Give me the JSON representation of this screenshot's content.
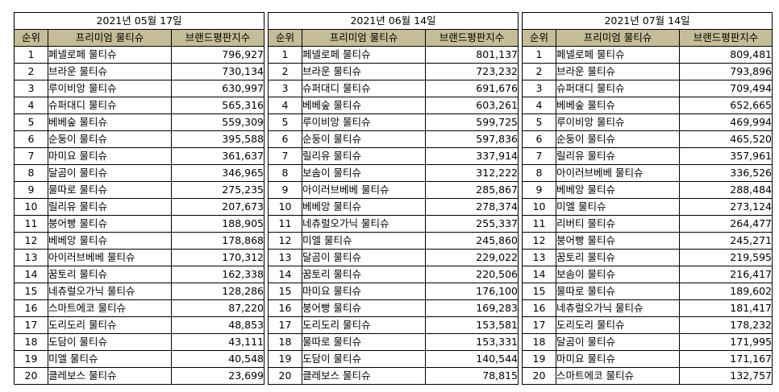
{
  "headers": {
    "rank": "순위",
    "name": "프리미엄 물티슈",
    "score": "브랜드평판지수"
  },
  "header_bg": "#c4bd97",
  "tables": [
    {
      "date": "2021년 05월 17일",
      "rows": [
        {
          "rank": "1",
          "name": "페넬로페 물티슈",
          "score": "796,927"
        },
        {
          "rank": "2",
          "name": "브라운 물티슈",
          "score": "730,134"
        },
        {
          "rank": "3",
          "name": "루이비앙 물티슈",
          "score": "630,997"
        },
        {
          "rank": "4",
          "name": "슈퍼대디 물티슈",
          "score": "565,316"
        },
        {
          "rank": "5",
          "name": "베베숲 물티슈",
          "score": "559,309"
        },
        {
          "rank": "6",
          "name": "순둥이 물티슈",
          "score": "395,588"
        },
        {
          "rank": "7",
          "name": "마미요 물티슈",
          "score": "361,637"
        },
        {
          "rank": "8",
          "name": "달곰이 물티슈",
          "score": "346,965"
        },
        {
          "rank": "9",
          "name": "물따로 물티슈",
          "score": "275,235"
        },
        {
          "rank": "10",
          "name": "릴리유 물티슈",
          "score": "207,673"
        },
        {
          "rank": "11",
          "name": "붕어빵 물티슈",
          "score": "188,905"
        },
        {
          "rank": "12",
          "name": "베베앙 물티슈",
          "score": "178,868"
        },
        {
          "rank": "13",
          "name": "아이러브베베 물티슈",
          "score": "170,312"
        },
        {
          "rank": "14",
          "name": "꿈토리 물티슈",
          "score": "162,338"
        },
        {
          "rank": "15",
          "name": "네츄럴오가닉 물티슈",
          "score": "128,286"
        },
        {
          "rank": "16",
          "name": "스마트에코 물티슈",
          "score": "87,220"
        },
        {
          "rank": "17",
          "name": "도리도리 물티슈",
          "score": "48,853"
        },
        {
          "rank": "18",
          "name": "도담이 물티슈",
          "score": "43,111"
        },
        {
          "rank": "19",
          "name": "미엘 물티슈",
          "score": "40,548"
        },
        {
          "rank": "20",
          "name": "클레보스 물티슈",
          "score": "23,699"
        }
      ]
    },
    {
      "date": "2021년 06월 14일",
      "rows": [
        {
          "rank": "1",
          "name": "페넬로페 물티슈",
          "score": "801,137"
        },
        {
          "rank": "2",
          "name": "브라운 물티슈",
          "score": "723,232"
        },
        {
          "rank": "3",
          "name": "슈퍼대디 물티슈",
          "score": "691,676"
        },
        {
          "rank": "4",
          "name": "베베숲 물티슈",
          "score": "603,261"
        },
        {
          "rank": "5",
          "name": "루이비앙 물티슈",
          "score": "599,725"
        },
        {
          "rank": "6",
          "name": "순둥이 물티슈",
          "score": "597,836"
        },
        {
          "rank": "7",
          "name": "릴리유 물티슈",
          "score": "337,914"
        },
        {
          "rank": "8",
          "name": "보솜이 물티슈",
          "score": "312,222"
        },
        {
          "rank": "9",
          "name": "아이러브베베 물티슈",
          "score": "285,867"
        },
        {
          "rank": "10",
          "name": "베베앙 물티슈",
          "score": "278,374"
        },
        {
          "rank": "11",
          "name": "네츄럴오가닉 물티슈",
          "score": "255,337"
        },
        {
          "rank": "12",
          "name": "미엘 물티슈",
          "score": "245,860"
        },
        {
          "rank": "13",
          "name": "달곰이 물티슈",
          "score": "229,022"
        },
        {
          "rank": "14",
          "name": "꿈토리 물티슈",
          "score": "220,506"
        },
        {
          "rank": "15",
          "name": "마미요 물티슈",
          "score": "176,100"
        },
        {
          "rank": "16",
          "name": "붕어빵 물티슈",
          "score": "169,283"
        },
        {
          "rank": "17",
          "name": "도리도리 물티슈",
          "score": "153,581"
        },
        {
          "rank": "18",
          "name": "물따로 물티슈",
          "score": "153,331"
        },
        {
          "rank": "19",
          "name": "도담이 물티슈",
          "score": "140,544"
        },
        {
          "rank": "20",
          "name": "클레보스 물티슈",
          "score": "78,815"
        }
      ]
    },
    {
      "date": "2021년 07월 14일",
      "rows": [
        {
          "rank": "1",
          "name": "페넬로페 물티슈",
          "score": "809,481"
        },
        {
          "rank": "2",
          "name": "브라운 물티슈",
          "score": "793,896"
        },
        {
          "rank": "3",
          "name": "슈퍼대디 물티슈",
          "score": "709,494"
        },
        {
          "rank": "4",
          "name": "베베숲 물티슈",
          "score": "652,665"
        },
        {
          "rank": "5",
          "name": "루이비앙 물티슈",
          "score": "469,994"
        },
        {
          "rank": "6",
          "name": "순둥이 물티슈",
          "score": "465,520"
        },
        {
          "rank": "7",
          "name": "릴리유 물티슈",
          "score": "357,961"
        },
        {
          "rank": "8",
          "name": "아이러브베베 물티슈",
          "score": "336,526"
        },
        {
          "rank": "9",
          "name": "베베앙 물티슈",
          "score": "288,484"
        },
        {
          "rank": "10",
          "name": "미엘 물티슈",
          "score": "273,124"
        },
        {
          "rank": "11",
          "name": "리버티 물티슈",
          "score": "264,477"
        },
        {
          "rank": "12",
          "name": "붕어빵 물티슈",
          "score": "245,271"
        },
        {
          "rank": "13",
          "name": "꿈토리 물티슈",
          "score": "219,595"
        },
        {
          "rank": "14",
          "name": "보솜이 물티슈",
          "score": "216,417"
        },
        {
          "rank": "15",
          "name": "물따로 물티슈",
          "score": "189,602"
        },
        {
          "rank": "16",
          "name": "네츄럴오가닉 물티슈",
          "score": "181,417"
        },
        {
          "rank": "17",
          "name": "도리도리 물티슈",
          "score": "178,232"
        },
        {
          "rank": "18",
          "name": "달곰이 물티슈",
          "score": "171,995"
        },
        {
          "rank": "19",
          "name": "마미요 물티슈",
          "score": "171,167"
        },
        {
          "rank": "20",
          "name": "스마트에코 물티슈",
          "score": "132,757"
        }
      ]
    }
  ]
}
